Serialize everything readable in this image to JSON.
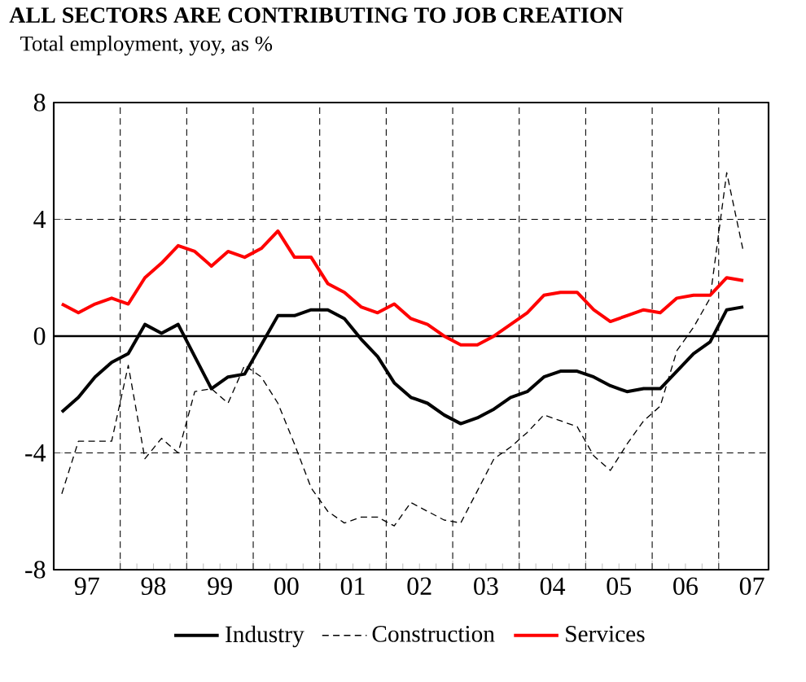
{
  "chart_data": {
    "type": "line",
    "title": "ALL SECTORS ARE CONTRIBUTING TO JOB CREATION",
    "subtitle": "Total employment, yoy, as %",
    "x": [
      "1997-02-15",
      "1997-05-15",
      "1997-08-15",
      "1997-11-15",
      "1998-02-15",
      "1998-05-15",
      "1998-08-15",
      "1998-11-15",
      "1999-02-15",
      "1999-05-15",
      "1999-08-15",
      "1999-11-15",
      "2000-02-15",
      "2000-05-15",
      "2000-08-15",
      "2000-11-15",
      "2001-02-15",
      "2001-05-15",
      "2001-08-15",
      "2001-11-15",
      "2002-02-15",
      "2002-05-15",
      "2002-08-15",
      "2002-11-15",
      "2003-02-15",
      "2003-05-15",
      "2003-08-15",
      "2003-11-15",
      "2004-02-15",
      "2004-05-15",
      "2004-08-15",
      "2004-11-15",
      "2005-02-15",
      "2005-05-15",
      "2005-08-15",
      "2005-11-15",
      "2006-02-15",
      "2006-05-15",
      "2006-08-15",
      "2006-11-15",
      "2007-02-15",
      "2007-05-15"
    ],
    "series": [
      {
        "name": "Industry",
        "color": "#000000",
        "line_style": "solid",
        "values": [
          -2.6,
          -2.1,
          -1.4,
          -0.9,
          -0.6,
          0.4,
          0.1,
          0.4,
          -0.7,
          -1.8,
          -1.4,
          -1.3,
          -0.3,
          0.7,
          0.7,
          0.9,
          0.9,
          0.6,
          -0.1,
          -0.7,
          -1.6,
          -2.1,
          -2.3,
          -2.7,
          -3.0,
          -2.8,
          -2.5,
          -2.1,
          -1.9,
          -1.4,
          -1.2,
          -1.2,
          -1.4,
          -1.7,
          -1.9,
          -1.8,
          -1.8,
          -1.2,
          -0.6,
          -0.2,
          0.9,
          1.0
        ]
      },
      {
        "name": "Construction",
        "color": "#000000",
        "line_style": "dashed",
        "values": [
          -5.4,
          -3.6,
          -3.6,
          -3.6,
          -1.0,
          -4.2,
          -3.5,
          -4.0,
          -1.9,
          -1.8,
          -2.3,
          -1.0,
          -1.4,
          -2.3,
          -3.7,
          -5.2,
          -6.0,
          -6.4,
          -6.2,
          -6.2,
          -6.5,
          -5.7,
          -6.0,
          -6.3,
          -6.4,
          -5.3,
          -4.2,
          -3.8,
          -3.3,
          -2.7,
          -2.9,
          -3.1,
          -4.1,
          -4.6,
          -3.7,
          -2.9,
          -2.4,
          -0.5,
          0.3,
          1.3,
          5.6,
          2.9
        ]
      },
      {
        "name": "Services",
        "color": "#ff0000",
        "line_style": "solid",
        "values": [
          1.1,
          0.8,
          1.1,
          1.3,
          1.1,
          2.0,
          2.5,
          3.1,
          2.9,
          2.4,
          2.9,
          2.7,
          3.0,
          3.6,
          2.7,
          2.7,
          1.8,
          1.5,
          1.0,
          0.8,
          1.1,
          0.6,
          0.4,
          0.0,
          -0.3,
          -0.3,
          0.0,
          0.4,
          0.8,
          1.4,
          1.5,
          1.5,
          0.9,
          0.5,
          0.7,
          0.9,
          0.8,
          1.3,
          1.4,
          1.4,
          2.0,
          1.9
        ]
      }
    ],
    "xlim": [
      "1997-01-01",
      "2007-10-01"
    ],
    "xticks": [
      {
        "value": "1997-07-01",
        "label": "97"
      },
      {
        "value": "1998-01-01",
        "label": null
      },
      {
        "value": "1998-07-01",
        "label": "98"
      },
      {
        "value": "1999-01-01",
        "label": null
      },
      {
        "value": "1999-07-01",
        "label": "99"
      },
      {
        "value": "2000-01-01",
        "label": null
      },
      {
        "value": "2000-07-01",
        "label": "00"
      },
      {
        "value": "2001-01-01",
        "label": null
      },
      {
        "value": "2001-07-01",
        "label": "01"
      },
      {
        "value": "2002-01-01",
        "label": null
      },
      {
        "value": "2002-07-01",
        "label": "02"
      },
      {
        "value": "2003-01-01",
        "label": null
      },
      {
        "value": "2003-07-01",
        "label": "03"
      },
      {
        "value": "2004-01-01",
        "label": null
      },
      {
        "value": "2004-07-01",
        "label": "04"
      },
      {
        "value": "2005-01-01",
        "label": null
      },
      {
        "value": "2005-07-01",
        "label": "05"
      },
      {
        "value": "2006-01-01",
        "label": null
      },
      {
        "value": "2006-07-01",
        "label": "06"
      },
      {
        "value": "2007-01-01",
        "label": null
      },
      {
        "value": "2007-07-01",
        "label": "07"
      }
    ],
    "ylim": [
      -8,
      8
    ],
    "yticks": [
      -8,
      -4,
      0,
      4,
      8
    ],
    "ref_lines": [
      {
        "axis": "y",
        "value": 0
      }
    ],
    "grid": true,
    "legend": "bottom",
    "marker": "none"
  }
}
